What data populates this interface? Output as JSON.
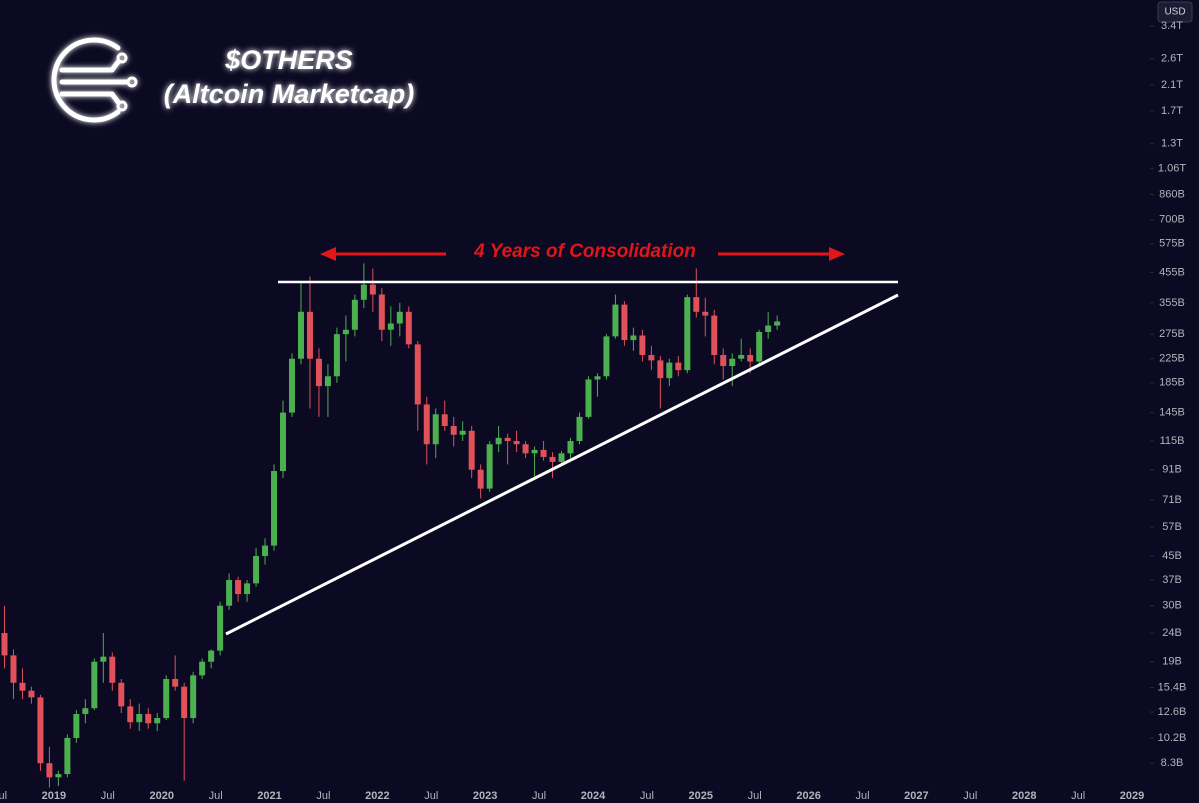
{
  "currency": "USD",
  "chart_data": {
    "type": "candlestick",
    "title": "$OTHERS",
    "subtitle": "(Altcoin Marketcap)",
    "annotation": "4 Years of Consolidation",
    "log_scale": true,
    "grid": false,
    "up_color": "#4caf50",
    "down_color": "#e0515a",
    "x": [
      "2018-07",
      "2018-08",
      "2018-09",
      "2018-10",
      "2018-11",
      "2018-12",
      "2019-01",
      "2019-02",
      "2019-03",
      "2019-04",
      "2019-05",
      "2019-06",
      "2019-07",
      "2019-08",
      "2019-09",
      "2019-10",
      "2019-11",
      "2019-12",
      "2020-01",
      "2020-02",
      "2020-03",
      "2020-04",
      "2020-05",
      "2020-06",
      "2020-07",
      "2020-08",
      "2020-09",
      "2020-10",
      "2020-11",
      "2020-12",
      "2021-01",
      "2021-02",
      "2021-03",
      "2021-04",
      "2021-05",
      "2021-06",
      "2021-07",
      "2021-08",
      "2021-09",
      "2021-10",
      "2021-11",
      "2021-12",
      "2022-01",
      "2022-02",
      "2022-03",
      "2022-04",
      "2022-05",
      "2022-06",
      "2022-07",
      "2022-08",
      "2022-09",
      "2022-10",
      "2022-11",
      "2022-12",
      "2023-01",
      "2023-02",
      "2023-03",
      "2023-04",
      "2023-05",
      "2023-06",
      "2023-07",
      "2023-08",
      "2023-09",
      "2023-10",
      "2023-11",
      "2023-12",
      "2024-01",
      "2024-02",
      "2024-03",
      "2024-04",
      "2024-05",
      "2024-06",
      "2024-07",
      "2024-08",
      "2024-09",
      "2024-10",
      "2024-11",
      "2024-12",
      "2025-01",
      "2025-02",
      "2025-03",
      "2025-04",
      "2025-05",
      "2025-06",
      "2025-07",
      "2025-08",
      "2025-09"
    ],
    "open": [
      24,
      20,
      16,
      15,
      14.2,
      8.3,
      7.4,
      7.6,
      10.2,
      12.4,
      13,
      19,
      19.8,
      16,
      13.2,
      11.6,
      12.4,
      11.5,
      12,
      16.5,
      15.5,
      12,
      17,
      19,
      20.8,
      30,
      37,
      33,
      36,
      45,
      49,
      90,
      145,
      225,
      330,
      225,
      180,
      195,
      275,
      285,
      364,
      412,
      380,
      285,
      300,
      330,
      253,
      155,
      112,
      143,
      130,
      121,
      125,
      91,
      78,
      112,
      118,
      115,
      112,
      104,
      107,
      101,
      97,
      104,
      115,
      140,
      190,
      195,
      270,
      350,
      262,
      272,
      232,
      222,
      192,
      218,
      205,
      372,
      330,
      320,
      232,
      212,
      225,
      232,
      220,
      280,
      295
    ],
    "high": [
      30,
      21,
      18,
      15.5,
      14.5,
      9.5,
      7.8,
      10.5,
      12.8,
      14,
      19.5,
      24,
      20.5,
      16.5,
      14,
      13.5,
      13,
      12.5,
      17,
      20,
      16,
      17.5,
      19.5,
      21,
      31,
      39,
      38,
      37,
      48,
      52,
      95,
      160,
      235,
      420,
      440,
      245,
      215,
      290,
      320,
      380,
      490,
      470,
      400,
      345,
      355,
      345,
      260,
      165,
      150,
      160,
      140,
      135,
      130,
      95,
      115,
      130,
      122,
      125,
      115,
      110,
      115,
      105,
      106,
      118,
      145,
      195,
      200,
      275,
      380,
      360,
      290,
      285,
      250,
      230,
      225,
      230,
      380,
      470,
      370,
      335,
      245,
      235,
      265,
      245,
      285,
      330,
      320
    ],
    "low": [
      18,
      14,
      14,
      13.5,
      7.8,
      6.8,
      6.9,
      7.4,
      9.8,
      11.5,
      12.8,
      16,
      15,
      12.5,
      11,
      10.8,
      11,
      10.8,
      11.8,
      15,
      7.2,
      11.5,
      16.5,
      18,
      20,
      29,
      31,
      31,
      35,
      42,
      47,
      85,
      140,
      215,
      150,
      140,
      140,
      185,
      220,
      270,
      340,
      330,
      260,
      250,
      270,
      245,
      125,
      95,
      100,
      125,
      110,
      115,
      85,
      72,
      76,
      105,
      95,
      105,
      100,
      86,
      98,
      85,
      94,
      100,
      112,
      138,
      165,
      190,
      265,
      250,
      240,
      220,
      205,
      150,
      180,
      195,
      200,
      315,
      270,
      215,
      190,
      180,
      220,
      200,
      215,
      265,
      285
    ],
    "close": [
      20,
      16,
      15,
      14.2,
      8.3,
      7.4,
      7.6,
      10.2,
      12.4,
      13,
      19,
      19.8,
      16,
      13.2,
      11.6,
      12.4,
      11.5,
      12,
      16.5,
      15.5,
      12,
      17,
      19,
      20.8,
      30,
      37,
      33,
      36,
      45,
      49,
      90,
      145,
      225,
      330,
      225,
      180,
      195,
      275,
      285,
      364,
      412,
      380,
      285,
      300,
      330,
      253,
      155,
      112,
      143,
      130,
      121,
      125,
      91,
      78,
      112,
      118,
      115,
      112,
      104,
      107,
      101,
      97,
      104,
      115,
      140,
      190,
      195,
      270,
      350,
      262,
      272,
      232,
      222,
      192,
      218,
      205,
      372,
      330,
      320,
      232,
      212,
      225,
      232,
      220,
      280,
      295,
      305
    ],
    "xlim": [
      "2018-07",
      "2029-03"
    ],
    "xticks": [
      {
        "value": "2018-07",
        "label": "Jul"
      },
      {
        "value": "2019-01",
        "label": "2019"
      },
      {
        "value": "2019-07",
        "label": "Jul"
      },
      {
        "value": "2020-01",
        "label": "2020"
      },
      {
        "value": "2020-07",
        "label": "Jul"
      },
      {
        "value": "2021-01",
        "label": "2021"
      },
      {
        "value": "2021-07",
        "label": "Jul"
      },
      {
        "value": "2022-01",
        "label": "2022"
      },
      {
        "value": "2022-07",
        "label": "Jul"
      },
      {
        "value": "2023-01",
        "label": "2023"
      },
      {
        "value": "2023-07",
        "label": "Jul"
      },
      {
        "value": "2024-01",
        "label": "2024"
      },
      {
        "value": "2024-07",
        "label": "Jul"
      },
      {
        "value": "2025-01",
        "label": "2025"
      },
      {
        "value": "2025-07",
        "label": "Jul"
      },
      {
        "value": "2026-01",
        "label": "2026"
      },
      {
        "value": "2026-07",
        "label": "Jul"
      },
      {
        "value": "2027-01",
        "label": "2027"
      },
      {
        "value": "2027-07",
        "label": "Jul"
      },
      {
        "value": "2028-01",
        "label": "2028"
      },
      {
        "value": "2028-07",
        "label": "Jul"
      },
      {
        "value": "2029-01",
        "label": "2029"
      }
    ],
    "ylim": [
      6,
      4200
    ],
    "yticks": [
      {
        "value": 3400,
        "label": "3.4T"
      },
      {
        "value": 2600,
        "label": "2.6T"
      },
      {
        "value": 2100,
        "label": "2.1T"
      },
      {
        "value": 1700,
        "label": "1.7T"
      },
      {
        "value": 1300,
        "label": "1.3T"
      },
      {
        "value": 1060,
        "label": "1.06T"
      },
      {
        "value": 860,
        "label": "860B"
      },
      {
        "value": 700,
        "label": "700B"
      },
      {
        "value": 575,
        "label": "575B"
      },
      {
        "value": 455,
        "label": "455B"
      },
      {
        "value": 355,
        "label": "355B"
      },
      {
        "value": 275,
        "label": "275B"
      },
      {
        "value": 225,
        "label": "225B"
      },
      {
        "value": 185,
        "label": "185B"
      },
      {
        "value": 145,
        "label": "145B"
      },
      {
        "value": 115,
        "label": "115B"
      },
      {
        "value": 91,
        "label": "91B"
      },
      {
        "value": 71,
        "label": "71B"
      },
      {
        "value": 57,
        "label": "57B"
      },
      {
        "value": 45,
        "label": "45B"
      },
      {
        "value": 37,
        "label": "37B"
      },
      {
        "value": 30,
        "label": "30B"
      },
      {
        "value": 24,
        "label": "24B"
      },
      {
        "value": 19,
        "label": "19B"
      },
      {
        "value": 15.4,
        "label": "15.4B"
      },
      {
        "value": 12.6,
        "label": "12.6B"
      },
      {
        "value": 10.2,
        "label": "10.2B"
      },
      {
        "value": 8.3,
        "label": "8.3B"
      }
    ]
  }
}
